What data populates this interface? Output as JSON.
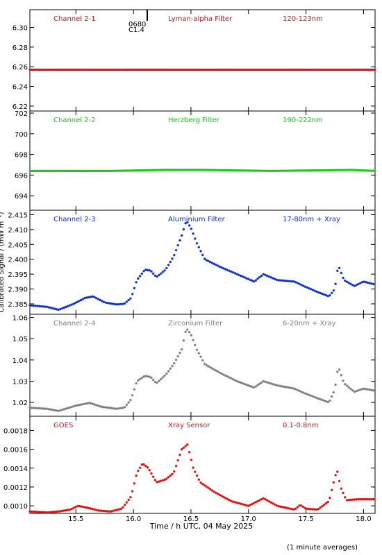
{
  "x_axis": {
    "label": "Time / h UTC, 04 May 2025",
    "range": [
      15.1,
      18.1
    ],
    "ticks": [
      15.5,
      16.0,
      16.5,
      17.0,
      17.5,
      18.0
    ],
    "tick_labels": [
      "15.5",
      "16.0",
      "16.5",
      "17.0",
      "17.5",
      "18.0"
    ]
  },
  "y_axis_label": "Calibrated Signal / (mW m⁻²)",
  "footnote": "(1 minute averages)",
  "flare_marker": {
    "time": 16.12,
    "class_label": "C1.4",
    "id_label": "0680"
  },
  "chart_data": [
    {
      "type": "scatter",
      "panel_label": "Channel 2-1",
      "filter": "Lyman-alpha Filter",
      "band": "120-123nm",
      "color": "#e01010",
      "ylim": [
        6.215,
        6.318
      ],
      "yticks": [
        6.22,
        6.24,
        6.26,
        6.28,
        6.3
      ],
      "ytick_labels": [
        "6.22",
        "6.24",
        "6.26",
        "6.28",
        "6.30"
      ],
      "series": [
        {
          "x": [
            15.1,
            18.1
          ],
          "y": [
            6.257,
            6.257
          ]
        }
      ]
    },
    {
      "type": "scatter",
      "panel_label": "Channel 2-2",
      "filter": "Herzberg Filter",
      "band": "190-222nm",
      "color": "#10d010",
      "ylim": [
        692.6,
        702.2
      ],
      "yticks": [
        694,
        696,
        698,
        700,
        702
      ],
      "ytick_labels": [
        "694",
        "696",
        "698",
        "700",
        "702"
      ],
      "series": [
        {
          "x": [
            15.1,
            15.8,
            16.27,
            16.62,
            17.2,
            17.9,
            18.1
          ],
          "y": [
            696.4,
            696.4,
            696.5,
            696.5,
            696.4,
            696.5,
            696.4
          ]
        }
      ]
    },
    {
      "type": "scatter",
      "panel_label": "Channel 2-3",
      "filter": "Aluminium Filter",
      "band": "17-80nm + Xray",
      "color": "#1030c8",
      "ylim": [
        2.3815,
        2.4165
      ],
      "yticks": [
        2.385,
        2.39,
        2.395,
        2.4,
        2.405,
        2.41,
        2.415
      ],
      "ytick_labels": [
        "2.385",
        "2.390",
        "2.395",
        "2.400",
        "2.405",
        "2.410",
        "2.415"
      ],
      "series": [
        {
          "x": [
            15.1,
            15.25,
            15.35,
            15.48,
            15.58,
            15.65,
            15.75,
            15.85,
            15.92,
            15.98,
            16.03,
            16.1,
            16.15,
            16.2,
            16.28,
            16.35,
            16.42,
            16.46,
            16.5,
            16.55,
            16.62,
            16.75,
            16.9,
            17.05,
            17.13,
            17.25,
            17.4,
            17.48,
            17.6,
            17.7,
            17.75,
            17.78,
            17.83,
            17.92,
            18.0,
            18.1
          ],
          "y": [
            2.3845,
            2.384,
            2.383,
            2.385,
            2.387,
            2.3875,
            2.3855,
            2.3848,
            2.385,
            2.387,
            2.393,
            2.3965,
            2.3962,
            2.394,
            2.3965,
            2.401,
            2.408,
            2.413,
            2.4105,
            2.4055,
            2.4,
            2.3975,
            2.395,
            2.3925,
            2.395,
            2.393,
            2.3925,
            2.391,
            2.389,
            2.3875,
            2.39,
            2.398,
            2.393,
            2.391,
            2.3925,
            2.3915
          ]
        }
      ]
    },
    {
      "type": "scatter",
      "panel_label": "Channel 2-4",
      "filter": "Zirconium Filter",
      "band": "6-20nm + Xray",
      "color": "#808080",
      "ylim": [
        1.0135,
        1.0615
      ],
      "yticks": [
        1.02,
        1.03,
        1.04,
        1.05,
        1.06
      ],
      "ytick_labels": [
        "1.02",
        "1.03",
        "1.04",
        "1.05",
        "1.06"
      ],
      "series": [
        {
          "x": [
            15.1,
            15.25,
            15.35,
            15.5,
            15.62,
            15.72,
            15.85,
            15.92,
            15.98,
            16.03,
            16.1,
            16.15,
            16.2,
            16.28,
            16.35,
            16.42,
            16.46,
            16.5,
            16.55,
            16.62,
            16.75,
            16.9,
            17.05,
            17.13,
            17.25,
            17.4,
            17.48,
            17.6,
            17.7,
            17.75,
            17.78,
            17.83,
            17.92,
            18.0,
            18.1
          ],
          "y": [
            1.0175,
            1.017,
            1.016,
            1.0185,
            1.0198,
            1.018,
            1.017,
            1.0175,
            1.0215,
            1.03,
            1.0325,
            1.032,
            1.029,
            1.033,
            1.038,
            1.045,
            1.055,
            1.052,
            1.045,
            1.038,
            1.034,
            1.03,
            1.027,
            1.03,
            1.028,
            1.0265,
            1.0245,
            1.022,
            1.02,
            1.026,
            1.037,
            1.029,
            1.025,
            1.0265,
            1.0255
          ]
        }
      ]
    },
    {
      "type": "scatter",
      "panel_label": "GOES",
      "filter": "Xray Sensor",
      "band": "0.1-0.8nm",
      "color": "#e01010",
      "ylim": [
        0.00092,
        0.00195
      ],
      "yticks": [
        0.001,
        0.0012,
        0.0014,
        0.0016,
        0.0018
      ],
      "ytick_labels": [
        "0.0010",
        "0.0012",
        "0.0014",
        "0.0016",
        "0.0018"
      ],
      "series": [
        {
          "x": [
            15.1,
            15.25,
            15.35,
            15.45,
            15.52,
            15.6,
            15.7,
            15.8,
            15.9,
            15.98,
            16.03,
            16.08,
            16.13,
            16.2,
            16.28,
            16.35,
            16.42,
            16.47,
            16.52,
            16.58,
            16.7,
            16.85,
            17.0,
            17.13,
            17.25,
            17.4,
            17.45,
            17.5,
            17.6,
            17.7,
            17.75,
            17.77,
            17.8,
            17.85,
            17.95,
            18.1
          ],
          "y": [
            0.00094,
            0.00093,
            0.00094,
            0.00096,
            0.001,
            0.00098,
            0.00095,
            0.00094,
            0.00097,
            0.0011,
            0.00135,
            0.00145,
            0.0014,
            0.00125,
            0.00128,
            0.00135,
            0.0016,
            0.00165,
            0.0014,
            0.00125,
            0.00115,
            0.00105,
            0.001,
            0.00108,
            0.001,
            0.00096,
            0.00101,
            0.00097,
            0.00096,
            0.00105,
            0.0013,
            0.00138,
            0.0012,
            0.00106,
            0.00107,
            0.00107
          ]
        }
      ]
    }
  ]
}
